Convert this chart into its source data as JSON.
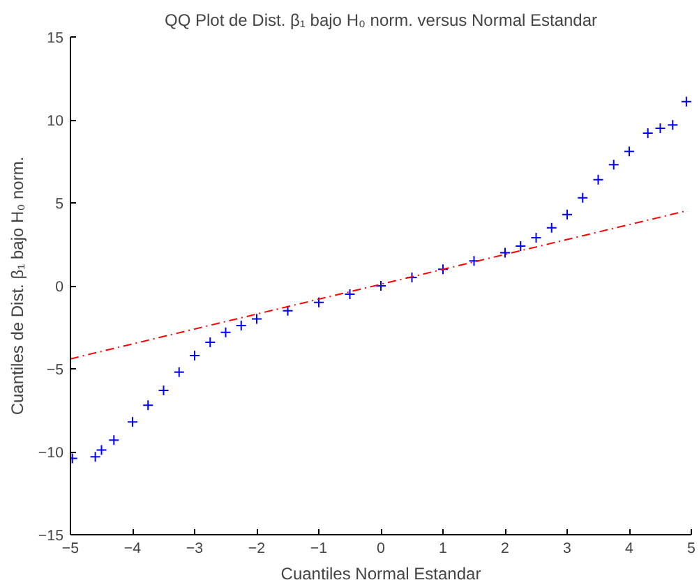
{
  "chart_data": {
    "type": "scatter",
    "title": "QQ Plot de Dist. β₁ bajo H₀ norm. versus Normal Estandar",
    "xlabel": "Cuantiles Normal Estandar",
    "ylabel": "Cuantiles de Dist. β₁ bajo H₀ norm.",
    "x": [
      -4.97,
      -4.6,
      -4.5,
      -4.3,
      -4.0,
      -3.75,
      -3.5,
      -3.25,
      -3.0,
      -2.75,
      -2.5,
      -2.25,
      -2.0,
      -1.5,
      -1.0,
      -0.5,
      0,
      0.5,
      1.0,
      1.5,
      2.0,
      2.25,
      2.5,
      2.75,
      3.0,
      3.25,
      3.5,
      3.75,
      4.0,
      4.3,
      4.5,
      4.7,
      4.92
    ],
    "series": [
      {
        "color": "#0000ff",
        "marker": "cross",
        "values": [
          -10.4,
          -10.3,
          -9.9,
          -9.3,
          -8.2,
          -7.2,
          -6.3,
          -5.2,
          -4.2,
          -3.4,
          -2.8,
          -2.4,
          -2.0,
          -1.5,
          -1.0,
          -0.5,
          0,
          0.5,
          1.0,
          1.5,
          2.0,
          2.4,
          2.9,
          3.5,
          4.3,
          5.3,
          6.4,
          7.3,
          8.1,
          9.2,
          9.5,
          9.7,
          11.1
        ]
      },
      {
        "type": "line",
        "color": "#ff0000",
        "line_style": "dashed",
        "x": [
          -5,
          4.9
        ],
        "values": [
          -4.4,
          4.5
        ]
      }
    ],
    "xlim": [
      -5,
      5
    ],
    "ylim": [
      -15,
      15
    ],
    "xticks": [
      -5,
      -4,
      -3,
      -2,
      -1,
      0,
      1,
      2,
      3,
      4,
      5
    ],
    "yticks": [
      -15,
      -10,
      -5,
      0,
      5,
      10,
      15
    ],
    "grid": false
  }
}
